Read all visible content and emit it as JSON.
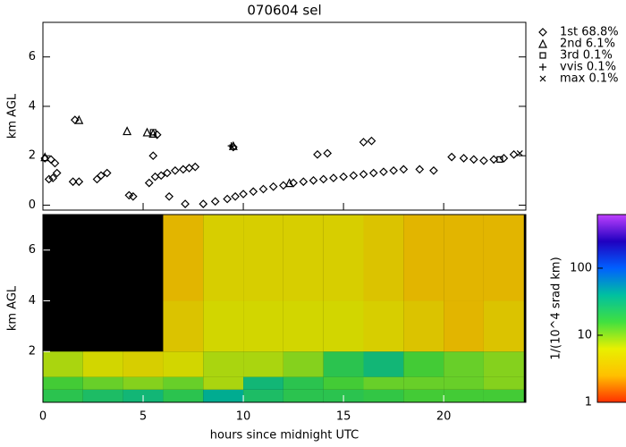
{
  "chart_data": [
    {
      "type": "scatter",
      "title": "070604 sel",
      "ylabel": "km AGL",
      "xlim": [
        0,
        24.1
      ],
      "ylim": [
        -0.2,
        7.4
      ],
      "yticks": [
        0,
        2,
        4,
        6
      ],
      "series": [
        {
          "name": "1st  68.8%",
          "marker": "diamond",
          "color": "#000000",
          "x": [
            0.1,
            0.4,
            0.6,
            0.7,
            0.5,
            0.3,
            1.5,
            1.8,
            2.9,
            3.2,
            4.3,
            4.5,
            5.3,
            5.6,
            5.9,
            6.2,
            6.6,
            7.0,
            7.3,
            7.6,
            6.3,
            7.1,
            8.0,
            8.6,
            9.2,
            9.6,
            10.0,
            10.5,
            11.0,
            11.5,
            12.0,
            12.5,
            13.0,
            13.5,
            14.0,
            14.5,
            15.0,
            15.5,
            16.0,
            16.5,
            17.0,
            17.5,
            18.0,
            18.8,
            19.5,
            20.4,
            21.0,
            21.5,
            22.0,
            22.5,
            23.0,
            23.5,
            13.7,
            14.2,
            16.0,
            16.4,
            5.5,
            2.7,
            1.6,
            5.7,
            9.5
          ],
          "y": [
            1.9,
            1.85,
            1.7,
            1.3,
            1.1,
            1.05,
            0.95,
            0.95,
            1.2,
            1.3,
            0.4,
            0.35,
            0.9,
            1.15,
            1.2,
            1.3,
            1.4,
            1.45,
            1.5,
            1.55,
            0.35,
            0.05,
            0.05,
            0.15,
            0.25,
            0.35,
            0.45,
            0.55,
            0.65,
            0.75,
            0.8,
            0.9,
            0.95,
            1.0,
            1.05,
            1.1,
            1.15,
            1.2,
            1.25,
            1.3,
            1.35,
            1.4,
            1.45,
            1.45,
            1.4,
            1.95,
            1.9,
            1.85,
            1.8,
            1.85,
            1.9,
            2.05,
            2.05,
            2.1,
            2.55,
            2.6,
            2.0,
            1.05,
            3.45,
            2.85,
            2.35
          ]
        },
        {
          "name": "2nd   6.1%",
          "marker": "triangle",
          "color": "#000000",
          "x": [
            1.8,
            4.2,
            5.2,
            5.5,
            0.1,
            9.5,
            12.3
          ],
          "y": [
            3.45,
            3.0,
            2.95,
            2.9,
            1.95,
            2.4,
            0.9
          ]
        },
        {
          "name": "3rd   0.1%",
          "marker": "square",
          "color": "#000000",
          "x": [
            5.5,
            22.8
          ],
          "y": [
            2.95,
            1.85
          ]
        },
        {
          "name": "vvis   0.1%",
          "marker": "plus",
          "color": "#000000",
          "x": [
            9.4
          ],
          "y": [
            2.4
          ]
        },
        {
          "name": "max   0.1%",
          "marker": "cross",
          "color": "#000000",
          "x": [
            9.45,
            23.8
          ],
          "y": [
            2.35,
            2.1
          ]
        }
      ]
    },
    {
      "type": "heatmap",
      "xlabel": "hours since midnight UTC",
      "ylabel": "km AGL",
      "xlim": [
        0,
        24.1
      ],
      "ylim": [
        0,
        7.4
      ],
      "xticks": [
        0,
        5,
        10,
        15,
        20
      ],
      "yticks": [
        2,
        4,
        6
      ],
      "x_edges": [
        0,
        2,
        4,
        6,
        8,
        10,
        12,
        14,
        16,
        18,
        20,
        22,
        24
      ],
      "y_edges": [
        0,
        0.5,
        1,
        2,
        4,
        7.4
      ],
      "values": [
        [
          20,
          25,
          30,
          20,
          40,
          25,
          20,
          20,
          18,
          15,
          15,
          15
        ],
        [
          15,
          12,
          10,
          12,
          8,
          30,
          20,
          15,
          12,
          12,
          12,
          10
        ],
        [
          8,
          6,
          5,
          6,
          8,
          8,
          10,
          20,
          30,
          15,
          12,
          10
        ],
        [
          null,
          null,
          null,
          4,
          6,
          6,
          6,
          6,
          5,
          4,
          3,
          4
        ],
        [
          null,
          null,
          null,
          3,
          5,
          5,
          5,
          5,
          4,
          3,
          3,
          3
        ]
      ],
      "background": "#000000",
      "colorbar": {
        "label": "1/(10^4 srad km)",
        "log": true,
        "clim": [
          1,
          630
        ],
        "ticks": [
          1,
          10,
          100
        ],
        "colormap": [
          "#ff3000",
          "#ffc000",
          "#e8f000",
          "#40e040",
          "#00c0a0",
          "#0060ff",
          "#2000c0",
          "#c040ff"
        ]
      }
    }
  ]
}
